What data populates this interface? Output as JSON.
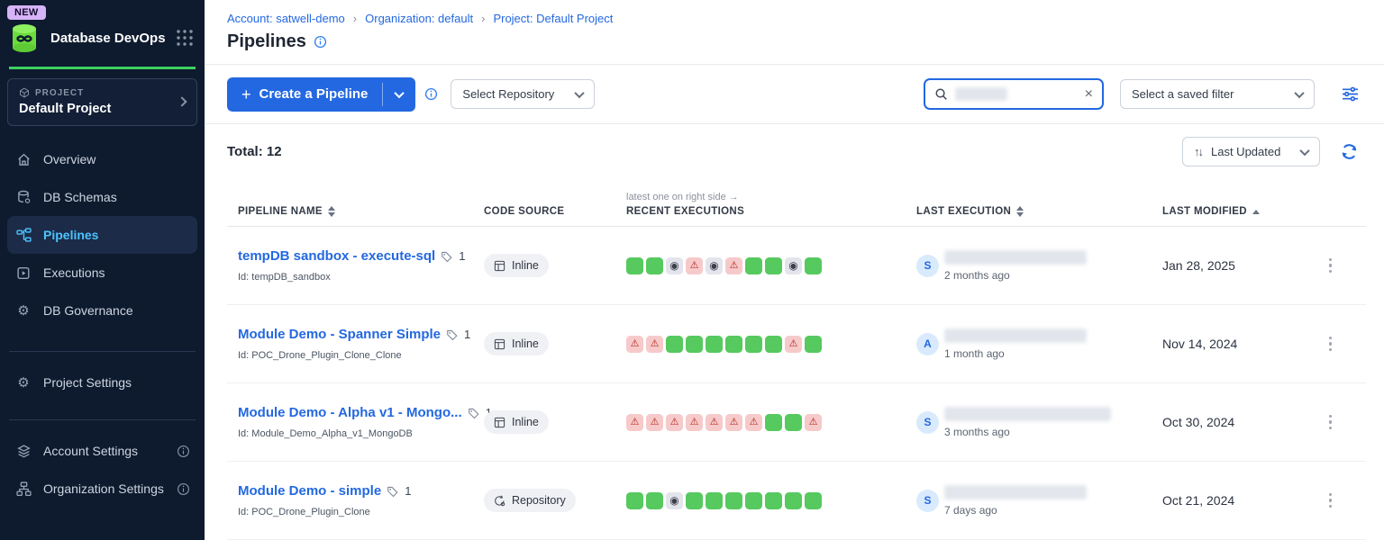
{
  "colors": {
    "accent": "#2368e1",
    "brand-green": "#3ed060",
    "active-nav": "#4cc3ff",
    "sidebar-bg": "#0e1b2f",
    "success": "#56c95f",
    "error-bg": "#f6caca",
    "error-icon": "#b32318",
    "skipped-bg": "#e4e4ed",
    "new-badge-bg": "#d7b4f8"
  },
  "sidebar": {
    "new_badge": "NEW",
    "app_title": "Database DevOps",
    "project": {
      "label": "PROJECT",
      "name": "Default Project"
    },
    "nav": [
      {
        "label": "Overview"
      },
      {
        "label": "DB Schemas"
      },
      {
        "label": "Pipelines"
      },
      {
        "label": "Executions"
      },
      {
        "label": "DB Governance"
      }
    ],
    "project_settings": "Project Settings",
    "account_settings": "Account Settings",
    "organization_settings": "Organization Settings"
  },
  "header": {
    "breadcrumbs": [
      {
        "label": "Account: satwell-demo"
      },
      {
        "label": "Organization: default"
      },
      {
        "label": "Project: Default Project"
      }
    ],
    "title": "Pipelines"
  },
  "toolbar": {
    "create_label": "Create a Pipeline",
    "repository_select": "Select Repository",
    "saved_filter_select": "Select a saved filter"
  },
  "list_controls": {
    "total": "Total: 12",
    "sort": "Last Updated"
  },
  "table": {
    "note": "latest one on right side →",
    "headers": [
      "PIPELINE NAME",
      "CODE SOURCE",
      "RECENT EXECUTIONS",
      "LAST EXECUTION",
      "LAST MODIFIED"
    ],
    "execution_legend": {
      "g": "success",
      "w": "error",
      "s": "skipped"
    },
    "rows": [
      {
        "name": "tempDB sandbox - execute-sql",
        "tag_count": "1",
        "id_label": "Id: tempDB_sandbox",
        "source": "Inline",
        "source_type": "inline",
        "executions": [
          "g",
          "g",
          "s",
          "w",
          "s",
          "w",
          "g",
          "g",
          "s",
          "g"
        ],
        "avatar": "S",
        "last_execution_ago": "2 months ago",
        "last_modified": "Jan 28, 2025"
      },
      {
        "name": "Module Demo - Spanner Simple",
        "tag_count": "1",
        "id_label": "Id: POC_Drone_Plugin_Clone_Clone",
        "source": "Inline",
        "source_type": "inline",
        "executions": [
          "w",
          "w",
          "g",
          "g",
          "g",
          "g",
          "g",
          "g",
          "w",
          "g"
        ],
        "avatar": "A",
        "last_execution_ago": "1 month ago",
        "last_modified": "Nov 14, 2024"
      },
      {
        "name": "Module Demo - Alpha v1 - Mongo...",
        "tag_count": "1",
        "id_label": "Id: Module_Demo_Alpha_v1_MongoDB",
        "source": "Inline",
        "source_type": "inline",
        "executions": [
          "w",
          "w",
          "w",
          "w",
          "w",
          "w",
          "w",
          "g",
          "g",
          "w"
        ],
        "avatar": "S",
        "last_execution_ago": "3 months ago",
        "last_modified": "Oct 30, 2024"
      },
      {
        "name": "Module Demo - simple",
        "tag_count": "1",
        "id_label": "Id: POC_Drone_Plugin_Clone",
        "source": "Repository",
        "source_type": "repository",
        "executions": [
          "g",
          "g",
          "s",
          "g",
          "g",
          "g",
          "g",
          "g",
          "g",
          "g"
        ],
        "avatar": "S",
        "last_execution_ago": "7 days ago",
        "last_modified": "Oct 21, 2024"
      }
    ]
  }
}
